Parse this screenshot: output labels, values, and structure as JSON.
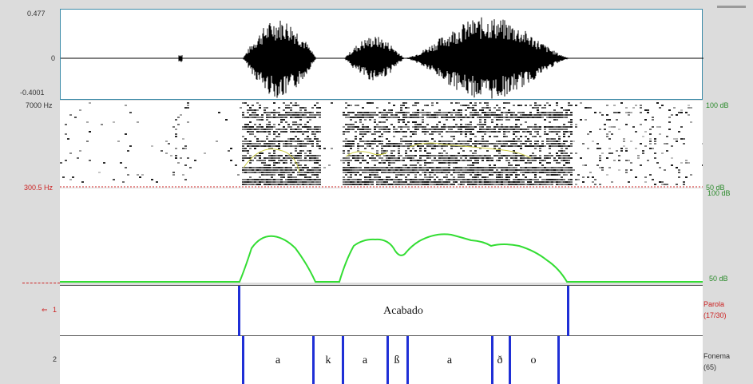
{
  "waveform": {
    "top_label": "0.477",
    "zero_label": "0",
    "bottom_label": "-0.4001"
  },
  "spectrogram": {
    "freq_top": "7000 Hz",
    "freq_bottom": "300.5 Hz",
    "db_top": "100 dB",
    "db_bottom": "50 dB"
  },
  "intensity": {
    "db_top": "100 dB",
    "db_bottom": "50 dB"
  },
  "tier1": {
    "number": "1",
    "arrow": "⇐",
    "name": "Parola",
    "count": "(17/30)",
    "word": "Acabado"
  },
  "tier2": {
    "number": "2",
    "name": "Fonema",
    "count": "(65)",
    "segments": [
      "a",
      "k",
      "a",
      "ß",
      "a",
      "ð",
      "o"
    ]
  },
  "colors": {
    "boundary": "#1f2fd6",
    "intensity_curve": "#33dd33",
    "pitch": "#cccc44",
    "red_label": "#cc2222",
    "green_label": "#2a8a2a"
  }
}
